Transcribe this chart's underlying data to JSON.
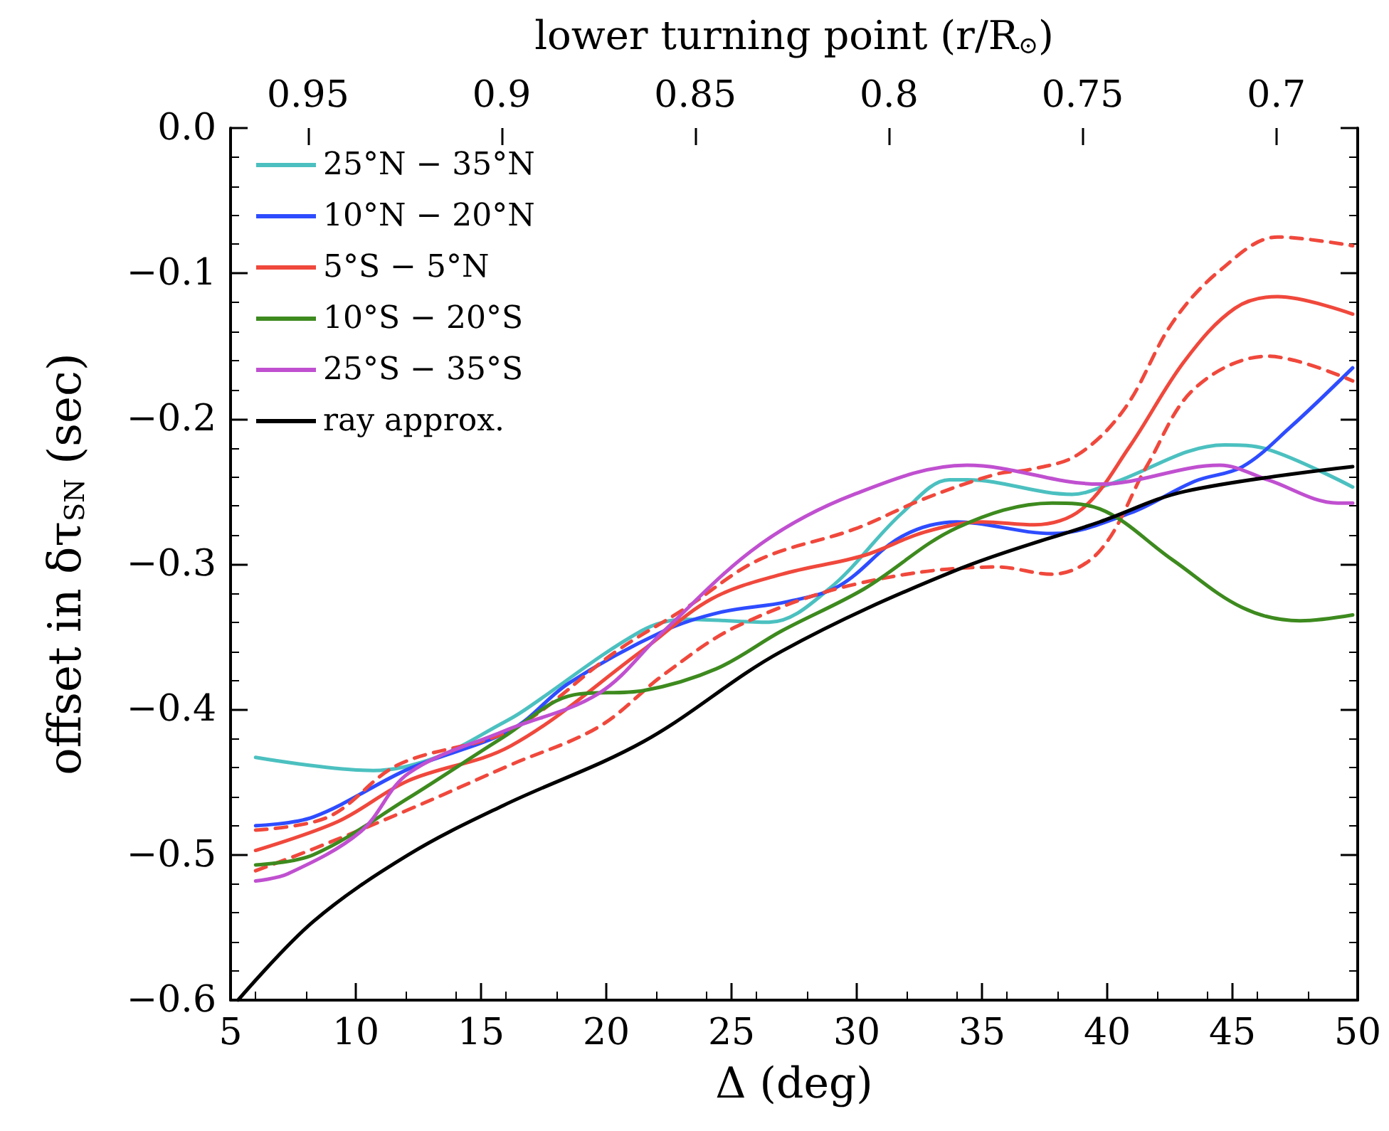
{
  "chart_data": {
    "type": "line",
    "xlabel": "Δ (deg)",
    "ylabel": "offset in δτ$_{SN}$ (sec)",
    "x2label": "lower turning point (r/R$_{⊙}$)",
    "xlim": [
      5,
      50
    ],
    "xticks": [
      5,
      10,
      15,
      20,
      25,
      30,
      35,
      40,
      45,
      50
    ],
    "ylim": [
      -0.6,
      0
    ],
    "yticks": [
      {
        "value": -0.6,
        "label": "−0.6"
      },
      {
        "value": -0.5,
        "label": "−0.5"
      },
      {
        "value": -0.4,
        "label": "−0.4"
      },
      {
        "value": -0.3,
        "label": "−0.3"
      },
      {
        "value": -0.2,
        "label": "−0.2"
      },
      {
        "value": -0.1,
        "label": "−0.1"
      },
      {
        "value": 0,
        "label": "0.0"
      }
    ],
    "x2lim": [
      0.97,
      0.679
    ],
    "x2ticks": [
      0.95,
      0.9,
      0.85,
      0.8,
      0.75,
      0.7
    ],
    "grid": false,
    "legend": "top left",
    "marker": "none",
    "line_style": "solid",
    "series": [
      {
        "name": "25°N − 35°N",
        "color": "#4cc0c0",
        "x": [
          6,
          10.7,
          13.2,
          15.9,
          16.6,
          21.4,
          23.2,
          26.5,
          28.9,
          31.8,
          33.7,
          34.4,
          38.6,
          40.1,
          44.7,
          46.4,
          49.8
        ],
        "values": [
          -0.433,
          -0.442,
          -0.433,
          -0.409,
          -0.402,
          -0.346,
          -0.338,
          -0.34,
          -0.317,
          -0.265,
          -0.242,
          -0.242,
          -0.252,
          -0.245,
          -0.218,
          -0.221,
          -0.247
        ]
      },
      {
        "name": "10°N − 20°N",
        "color": "#2e4cff",
        "x": [
          6,
          8.3,
          12.1,
          16.2,
          18.5,
          22.3,
          24.6,
          27.2,
          29.3,
          31.8,
          34,
          34.8,
          37.8,
          40.9,
          43.5,
          45.4,
          47.3,
          49.8
        ],
        "values": [
          -0.48,
          -0.474,
          -0.441,
          -0.414,
          -0.382,
          -0.346,
          -0.333,
          -0.326,
          -0.315,
          -0.281,
          -0.271,
          -0.272,
          -0.279,
          -0.265,
          -0.243,
          -0.233,
          -0.206,
          -0.165
        ]
      },
      {
        "name": "5°S − 5°N",
        "color": "#f0483c",
        "x": [
          6,
          9.3,
          12.1,
          16.2,
          21.4,
          24.2,
          27,
          30.3,
          32.7,
          35,
          37.1,
          39,
          40.9,
          43.1,
          45.1,
          46.8,
          49.8
        ],
        "values": [
          -0.497,
          -0.477,
          -0.449,
          -0.425,
          -0.36,
          -0.324,
          -0.307,
          -0.294,
          -0.278,
          -0.271,
          -0.273,
          -0.262,
          -0.219,
          -0.16,
          -0.124,
          -0.116,
          -0.128
        ]
      },
      {
        "color": "#f0483c",
        "line_style": "dashed",
        "x": [
          6,
          8.9,
          11.7,
          16.2,
          20.4,
          23.2,
          26.1,
          29.9,
          32.7,
          35.6,
          36.9,
          38.8,
          40.7,
          42.6,
          44.5,
          46.8,
          49.8
        ],
        "values": [
          -0.483,
          -0.474,
          -0.438,
          -0.414,
          -0.36,
          -0.33,
          -0.297,
          -0.276,
          -0.255,
          -0.238,
          -0.235,
          -0.225,
          -0.193,
          -0.134,
          -0.098,
          -0.075,
          -0.081
        ]
      },
      {
        "color": "#f0483c",
        "line_style": "dashed",
        "x": [
          6,
          8.3,
          12.1,
          16.2,
          19.7,
          22.3,
          25.2,
          29.9,
          35.6,
          37.8,
          39.7,
          41.6,
          43.5,
          46.4,
          49.8
        ],
        "values": [
          -0.511,
          -0.496,
          -0.469,
          -0.438,
          -0.412,
          -0.376,
          -0.343,
          -0.314,
          -0.302,
          -0.307,
          -0.291,
          -0.232,
          -0.179,
          -0.157,
          -0.174
        ]
      },
      {
        "name": "10°S − 20°S",
        "color": "#3d8a1e",
        "x": [
          6,
          8.3,
          12.1,
          15.9,
          18.7,
          21.5,
          24.4,
          27,
          30.3,
          34,
          37.8,
          39.7,
          42.6,
          45.4,
          47.7,
          49.8
        ],
        "values": [
          -0.507,
          -0.5,
          -0.461,
          -0.419,
          -0.39,
          -0.387,
          -0.372,
          -0.346,
          -0.317,
          -0.275,
          -0.258,
          -0.262,
          -0.297,
          -0.33,
          -0.339,
          -0.335
        ]
      },
      {
        "name": "25°S − 35°S",
        "color": "#c050d0",
        "x": [
          6,
          7.3,
          10.2,
          12.1,
          15.9,
          19.7,
          22.3,
          26.1,
          29.9,
          34.4,
          39.7,
          44.5,
          46.4,
          49.2,
          49.8
        ],
        "values": [
          -0.518,
          -0.513,
          -0.484,
          -0.444,
          -0.415,
          -0.389,
          -0.346,
          -0.287,
          -0.252,
          -0.232,
          -0.245,
          -0.232,
          -0.242,
          -0.258,
          -0.258
        ]
      },
      {
        "name": "ray approx.",
        "color": "#000000",
        "x": [
          5.3,
          8.3,
          12.1,
          15.9,
          21.5,
          27,
          34,
          39.7,
          43.1,
          49.8
        ],
        "values": [
          -0.6,
          -0.546,
          -0.5,
          -0.466,
          -0.422,
          -0.36,
          -0.304,
          -0.271,
          -0.25,
          -0.233
        ]
      }
    ]
  }
}
